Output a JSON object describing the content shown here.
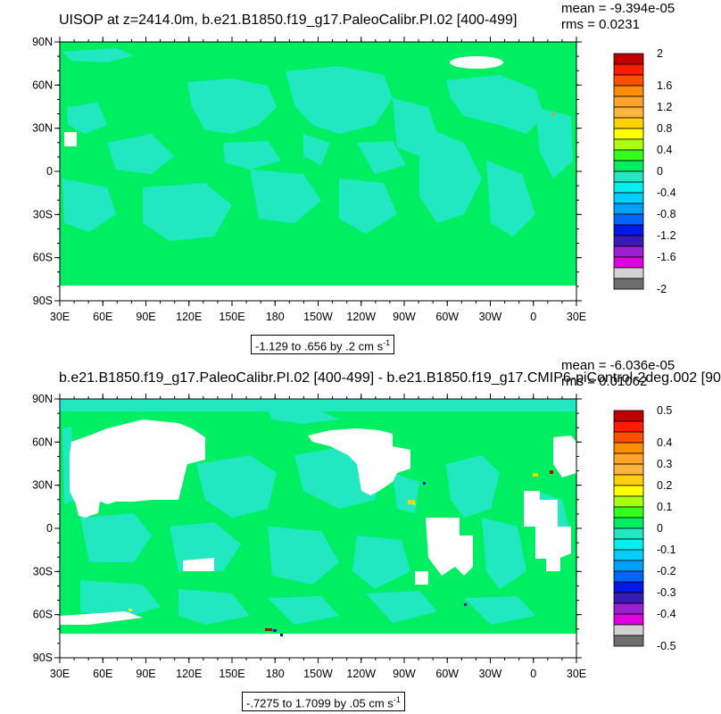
{
  "panels": [
    {
      "title": "UISOP at z=2414.0m, b.e21.B1850.f19_g17.PaleoCalibr.PI.02 [400-499]",
      "mean_text": "mean = -9.394e-05",
      "rms_text": "rms = 0.0231",
      "range_text": "-1.129 to .656 by .2 cm s",
      "range_unit_sup": "-1",
      "lat_ticks": [
        "90N",
        "60N",
        "30N",
        "0",
        "30S",
        "60S",
        "90S"
      ],
      "lon_ticks": [
        "30E",
        "60E",
        "90E",
        "120E",
        "150E",
        "180",
        "150W",
        "120W",
        "90W",
        "60W",
        "30W",
        "0",
        "30E"
      ],
      "colorbar_labels": [
        "2",
        "1.6",
        "1.2",
        "0.8",
        "0.4",
        "0",
        "-0.4",
        "-0.8",
        "-1.2",
        "-1.6",
        "-2"
      ]
    },
    {
      "title": "b.e21.B1850.f19_g17.PaleoCalibr.PI.02 [400-499] - b.e21.B1850.f19_g17.CMIP6-piControl-2deg.002 [90",
      "mean_text": "mean = -6.036e-05",
      "rms_text": "rms = 0.01062",
      "range_text": "-.7275 to 1.7099 by .05 cm s",
      "range_unit_sup": "-1",
      "lat_ticks": [
        "90N",
        "60N",
        "30N",
        "0",
        "30S",
        "60S",
        "90S"
      ],
      "lon_ticks": [
        "30E",
        "60E",
        "90E",
        "120E",
        "150E",
        "180",
        "150W",
        "120W",
        "90W",
        "60W",
        "30W",
        "0",
        "30E"
      ],
      "colorbar_labels": [
        "0.5",
        "0.4",
        "0.3",
        "0.2",
        "0.1",
        "0",
        "-0.1",
        "-0.2",
        "-0.3",
        "-0.4",
        "-0.5"
      ]
    }
  ],
  "chart_data": [
    {
      "type": "heatmap",
      "title": "UISOP at z=2414.0m, b.e21.B1850.f19_g17.PaleoCalibr.PI.02 [400-499]",
      "xlabel": "",
      "ylabel": "",
      "xlim": [
        "30E",
        "30E"
      ],
      "ylim": [
        "90S",
        "90N"
      ],
      "color_levels": [
        -2,
        -1.8,
        -1.6,
        -1.4,
        -1.2,
        -1.0,
        -0.8,
        -0.6,
        -0.4,
        -0.2,
        0,
        0.2,
        0.4,
        0.6,
        0.8,
        1.0,
        1.2,
        1.4,
        1.6,
        1.8,
        2
      ],
      "colormap": [
        "#6e6e6e",
        "#d2d2d2",
        "#e000e0",
        "#9a20d0",
        "#3a1ab5",
        "#0018e8",
        "#0064ff",
        "#00a0ff",
        "#00cfff",
        "#00f0f0",
        "#22e8c2",
        "#00ee62",
        "#33ff1a",
        "#aaff11",
        "#ffff00",
        "#ffd200",
        "#ffb440",
        "#ffa428",
        "#ff8d00",
        "#ff4f00",
        "#ff1c00",
        "#c00000"
      ],
      "dominant_value_range": [
        -0.2,
        0.2
      ],
      "mean": -9.394e-05,
      "rms": 0.0231,
      "data_range": [
        -1.129,
        0.656
      ],
      "contour_interval": 0.2,
      "units": "cm s-1"
    },
    {
      "type": "heatmap",
      "title": "b.e21.B1850.f19_g17.PaleoCalibr.PI.02 [400-499] - b.e21.B1850.f19_g17.CMIP6-piControl-2deg.002 [90",
      "xlabel": "",
      "ylabel": "",
      "xlim": [
        "30E",
        "30E"
      ],
      "ylim": [
        "90S",
        "90N"
      ],
      "color_levels": [
        -0.5,
        -0.45,
        -0.4,
        -0.35,
        -0.3,
        -0.25,
        -0.2,
        -0.15,
        -0.1,
        -0.05,
        0,
        0.05,
        0.1,
        0.15,
        0.2,
        0.25,
        0.3,
        0.35,
        0.4,
        0.45,
        0.5
      ],
      "colormap": [
        "#6e6e6e",
        "#d2d2d2",
        "#e000e0",
        "#9a20d0",
        "#3a1ab5",
        "#0018e8",
        "#0064ff",
        "#00a0ff",
        "#00cfff",
        "#00f0f0",
        "#22e8c2",
        "#00ee62",
        "#33ff1a",
        "#aaff11",
        "#ffff00",
        "#ffd200",
        "#ffb440",
        "#ffa428",
        "#ff8d00",
        "#ff4f00",
        "#ff1c00",
        "#c00000"
      ],
      "dominant_value_range": [
        -0.05,
        0.05
      ],
      "mean": -6.036e-05,
      "rms": 0.01062,
      "data_range": [
        -0.7275,
        1.7099
      ],
      "contour_interval": 0.05,
      "units": "cm s-1"
    }
  ]
}
